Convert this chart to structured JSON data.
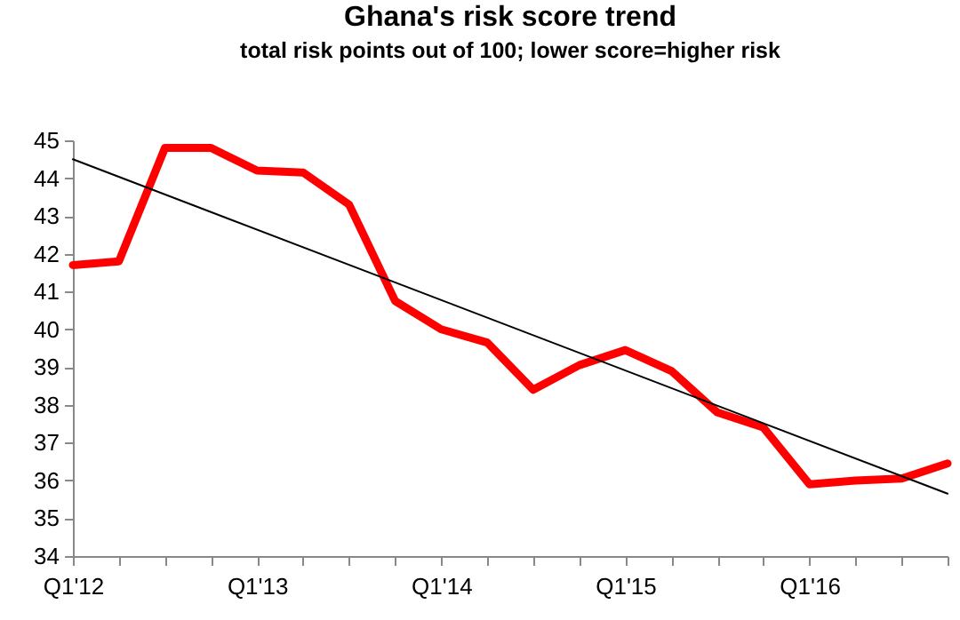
{
  "chart_data": {
    "type": "line",
    "title": "Ghana's risk score trend",
    "subtitle": "total risk points out of 100; lower score=higher risk",
    "categories": [
      "Q1'12",
      null,
      null,
      null,
      "Q1'13",
      null,
      null,
      null,
      "Q1'14",
      null,
      null,
      null,
      "Q1'15",
      null,
      null,
      null,
      "Q1'16",
      null,
      null,
      null
    ],
    "series": [
      {
        "color": "#ff0000",
        "values": [
          41.7,
          41.8,
          44.8,
          44.8,
          44.2,
          44.15,
          43.3,
          40.75,
          40.0,
          39.65,
          38.4,
          39.05,
          39.45,
          38.9,
          37.8,
          37.4,
          35.9,
          36.0,
          36.05,
          36.45
        ]
      },
      {
        "type": "line",
        "color": "#000000",
        "values": [
          44.5,
          null,
          null,
          null,
          null,
          null,
          null,
          null,
          null,
          null,
          null,
          null,
          null,
          null,
          null,
          null,
          null,
          null,
          null,
          35.65
        ]
      }
    ],
    "ylim": [
      34,
      45
    ],
    "yticks": [
      34,
      35,
      36,
      37,
      38,
      39,
      40,
      41,
      42,
      43,
      44,
      45
    ]
  }
}
